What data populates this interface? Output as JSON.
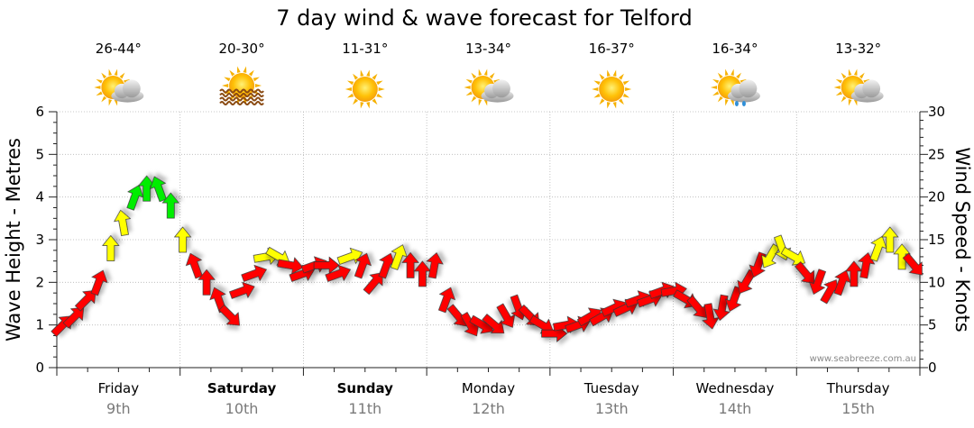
{
  "chart_data": {
    "type": "line",
    "title": "7 day wind & wave forecast for Telford",
    "ylabel_left": "Wave Height - Metres",
    "ylabel_right": "Wind Speed - Knots",
    "ylim_left": [
      0,
      6
    ],
    "ylim_right": [
      0,
      30
    ],
    "yticks_left": [
      "0",
      "1",
      "2",
      "3",
      "4",
      "5",
      "6"
    ],
    "yticks_right": [
      "0",
      "5",
      "10",
      "15",
      "20",
      "25",
      "30"
    ],
    "grid": true,
    "credit": "www.seabreeze.com.au",
    "days": [
      {
        "name": "Friday",
        "date": "9th",
        "temp": "26-44°",
        "icon": "partly-cloudy-icon",
        "bold": false
      },
      {
        "name": "Saturday",
        "date": "10th",
        "temp": "20-30°",
        "icon": "sun-haze-icon",
        "bold": true
      },
      {
        "name": "Sunday",
        "date": "11th",
        "temp": "11-31°",
        "icon": "sunny-icon",
        "bold": true
      },
      {
        "name": "Monday",
        "date": "12th",
        "temp": "13-34°",
        "icon": "partly-cloudy-icon",
        "bold": false
      },
      {
        "name": "Tuesday",
        "date": "13th",
        "temp": "16-37°",
        "icon": "sunny-icon",
        "bold": false
      },
      {
        "name": "Wednesday",
        "date": "14th",
        "temp": "16-34°",
        "icon": "sun-showers-icon",
        "bold": false
      },
      {
        "name": "Thursday",
        "date": "15th",
        "temp": "13-32°",
        "icon": "partly-cloudy-icon",
        "bold": false
      }
    ],
    "wind_color_scale": {
      "low": "#ff0000",
      "mid": "#ffff00",
      "high": "#00ee00"
    },
    "series": [
      {
        "wind_knots": [
          5,
          6,
          8,
          10,
          14,
          17,
          20,
          21,
          21,
          19,
          15,
          12,
          10,
          8,
          6,
          9,
          11,
          13,
          13,
          12,
          11,
          12,
          12,
          11,
          13,
          12,
          10,
          12,
          13,
          12,
          11,
          12,
          8,
          6,
          5,
          5,
          5,
          6,
          7,
          6,
          5,
          4,
          5,
          5,
          6,
          6,
          7,
          7,
          8,
          8,
          9,
          9,
          8,
          7,
          6,
          7,
          8,
          10,
          12,
          13,
          14,
          13,
          11,
          10,
          9,
          10,
          11,
          12,
          14,
          15,
          13,
          12
        ],
        "wind_dir_deg": [
          225,
          225,
          225,
          200,
          180,
          170,
          200,
          180,
          160,
          180,
          180,
          160,
          180,
          160,
          315,
          250,
          250,
          260,
          300,
          280,
          250,
          250,
          270,
          250,
          250,
          200,
          220,
          200,
          200,
          180,
          180,
          190,
          200,
          320,
          330,
          300,
          310,
          330,
          340,
          315,
          300,
          270,
          260,
          250,
          240,
          240,
          245,
          245,
          250,
          250,
          250,
          260,
          300,
          320,
          350,
          10,
          20,
          30,
          20,
          30,
          340,
          300,
          320,
          20,
          210,
          200,
          180,
          190,
          200,
          180,
          180,
          320
        ]
      }
    ]
  }
}
